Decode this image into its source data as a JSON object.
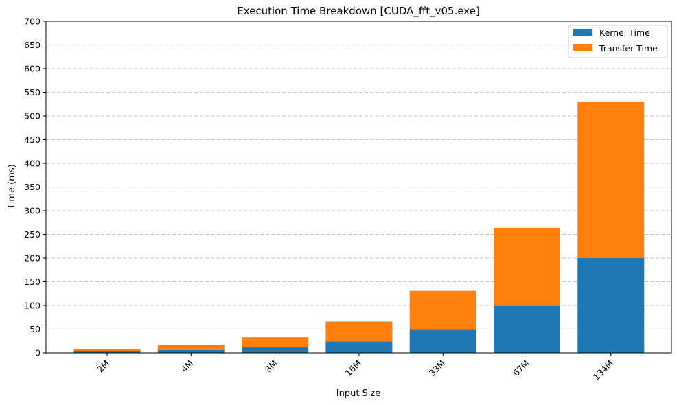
{
  "chart_data": {
    "type": "bar",
    "stacked": true,
    "title": "Execution Time Breakdown [CUDA_fft_v05.exe]",
    "xlabel": "Input Size",
    "ylabel": "Time (ms)",
    "categories": [
      "2M",
      "4M",
      "8M",
      "16M",
      "33M",
      "67M",
      "134M"
    ],
    "series": [
      {
        "name": "Kernel Time",
        "color": "#1f77b4",
        "values": [
          3,
          6,
          12,
          24,
          49,
          99,
          200
        ]
      },
      {
        "name": "Transfer Time",
        "color": "#ff7f0e",
        "values": [
          5,
          11,
          21,
          42,
          82,
          165,
          330
        ]
      }
    ],
    "ylim": [
      0,
      700
    ],
    "yticks": [
      0,
      50,
      100,
      150,
      200,
      250,
      300,
      350,
      400,
      450,
      500,
      550,
      600,
      650,
      700
    ],
    "grid": "y-dashed",
    "legend_position": "top-right",
    "xtick_rotation": -45
  }
}
